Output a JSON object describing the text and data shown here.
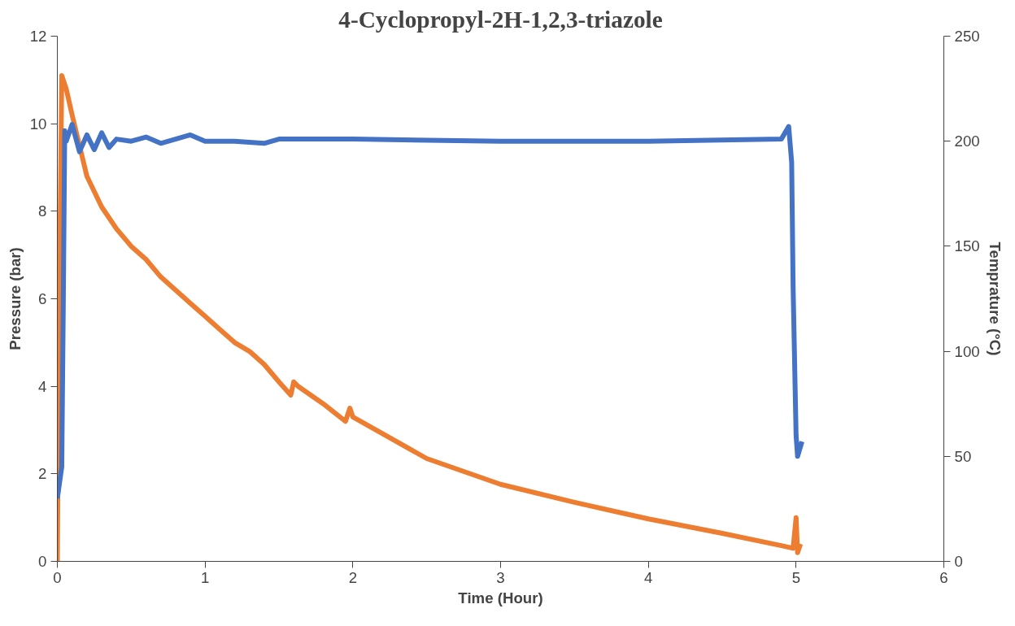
{
  "chart_data": {
    "type": "line",
    "title": "4-Cyclopropyl-2H-1,2,3-triazole",
    "xlabel": "Time (Hour)",
    "ylabel": "Pressure (bar)",
    "y2label": "Temprature (°C)",
    "xlim": [
      0,
      6
    ],
    "xticks": [
      0,
      1,
      2,
      3,
      4,
      5,
      6
    ],
    "ylim": [
      0,
      12
    ],
    "yticks": [
      0,
      2,
      4,
      6,
      8,
      10,
      12
    ],
    "y2lim": [
      0,
      250
    ],
    "y2ticks": [
      0,
      50,
      100,
      150,
      200,
      250
    ],
    "grid": false,
    "marker": "none",
    "line_style": "solid",
    "series": [
      {
        "color": "#ed7d31",
        "x": [
          0,
          0.01,
          0.03,
          0.06,
          0.1,
          0.15,
          0.2,
          0.3,
          0.4,
          0.5,
          0.6,
          0.7,
          0.8,
          0.9,
          1.0,
          1.1,
          1.2,
          1.3,
          1.4,
          1.5,
          1.58,
          1.6,
          1.63,
          1.8,
          1.95,
          1.98,
          2.0,
          2.5,
          3.0,
          3.5,
          4.0,
          4.5,
          4.9,
          4.98,
          5.0,
          5.01,
          5.03
        ],
        "values": [
          0,
          5,
          11.1,
          10.8,
          10.2,
          9.5,
          8.8,
          8.1,
          7.6,
          7.2,
          6.9,
          6.5,
          6.2,
          5.9,
          5.6,
          5.3,
          5.0,
          4.8,
          4.5,
          4.1,
          3.8,
          4.1,
          4.0,
          3.6,
          3.2,
          3.5,
          3.3,
          2.35,
          1.76,
          1.35,
          0.97,
          0.64,
          0.36,
          0.3,
          1.0,
          0.2,
          0.4
        ]
      },
      {
        "color": "#4472c4",
        "axis": "y2",
        "x": [
          0,
          0.03,
          0.04,
          0.05,
          0.06,
          0.1,
          0.15,
          0.2,
          0.25,
          0.3,
          0.35,
          0.4,
          0.5,
          0.6,
          0.7,
          0.8,
          0.9,
          1.0,
          1.2,
          1.4,
          1.5,
          2.0,
          3.0,
          4.0,
          4.9,
          4.95,
          4.97,
          4.98,
          5.0,
          5.01,
          5.04
        ],
        "values": [
          30,
          45,
          120,
          205,
          200,
          208,
          195,
          203,
          196,
          204,
          197,
          201,
          200,
          202,
          199,
          201,
          203,
          200,
          200,
          199,
          201,
          201,
          200,
          200,
          201,
          207,
          190,
          130,
          60,
          50,
          57
        ]
      }
    ]
  }
}
